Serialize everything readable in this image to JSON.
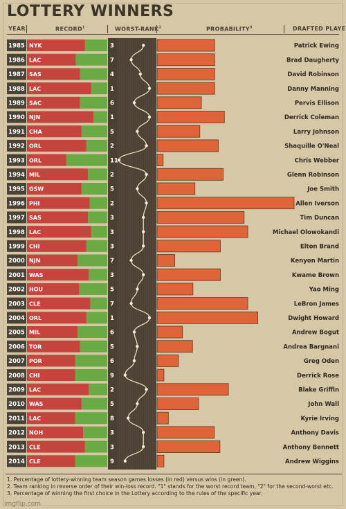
{
  "title": "LOTTERY WINNERS",
  "headers": {
    "year": "YEAR",
    "record": "RECORD",
    "record_sup": "1",
    "worst_rank": "WORST-RANK",
    "worst_rank_sup": "2",
    "probability": "PROBABILITY",
    "probability_sup": "3",
    "drafted_player": "DRAFTED PLAYER"
  },
  "colors": {
    "background": "#d6c7a6",
    "loss": "#c5443d",
    "win": "#6aaa45",
    "probability": "#e0643a",
    "rank_panel": "#4a3f33",
    "year_bg": "#4a4237"
  },
  "chart_data": {
    "type": "table",
    "title": "LOTTERY WINNERS",
    "columns": [
      "YEAR",
      "RECORD",
      "WORST-RANK",
      "PROBABILITY",
      "DRAFTED PLAYER"
    ],
    "rows": [
      {
        "year": "1985",
        "team": "NYK",
        "loss_pct": 0.72,
        "rank": "3",
        "probability": 14.3,
        "player": "Patrick Ewing"
      },
      {
        "year": "1986",
        "team": "LAC",
        "loss_pct": 0.61,
        "rank": "7",
        "probability": 14.3,
        "player": "Brad Daugherty"
      },
      {
        "year": "1987",
        "team": "SAS",
        "loss_pct": 0.66,
        "rank": "4",
        "probability": 14.3,
        "player": "David Robinson"
      },
      {
        "year": "1988",
        "team": "LAC",
        "loss_pct": 0.8,
        "rank": "1",
        "probability": 14.3,
        "player": "Danny Manning"
      },
      {
        "year": "1989",
        "team": "SAC",
        "loss_pct": 0.66,
        "rank": "6",
        "probability": 11.0,
        "player": "Pervis Ellison"
      },
      {
        "year": "1990",
        "team": "NJN",
        "loss_pct": 0.83,
        "rank": "1",
        "probability": 16.7,
        "player": "Derrick Coleman"
      },
      {
        "year": "1991",
        "team": "CHA",
        "loss_pct": 0.68,
        "rank": "5",
        "probability": 10.6,
        "player": "Larry Johnson"
      },
      {
        "year": "1992",
        "team": "ORL",
        "loss_pct": 0.74,
        "rank": "2",
        "probability": 15.2,
        "player": "Shaquille O'Neal"
      },
      {
        "year": "1993",
        "team": "ORL",
        "loss_pct": 0.49,
        "rank": "11",
        "probability": 1.5,
        "player": "Chris Webber"
      },
      {
        "year": "1994",
        "team": "MIL",
        "loss_pct": 0.76,
        "rank": "2",
        "probability": 16.4,
        "player": "Glenn Robinson"
      },
      {
        "year": "1995",
        "team": "GSW",
        "loss_pct": 0.68,
        "rank": "5",
        "probability": 9.4,
        "player": "Joe Smith"
      },
      {
        "year": "1996",
        "team": "PHI",
        "loss_pct": 0.78,
        "rank": "2",
        "probability": 34.0,
        "player": "Allen Iverson"
      },
      {
        "year": "1997",
        "team": "SAS",
        "loss_pct": 0.76,
        "rank": "3",
        "probability": 21.6,
        "player": "Tim Duncan"
      },
      {
        "year": "1998",
        "team": "LAC",
        "loss_pct": 0.8,
        "rank": "3",
        "probability": 22.5,
        "player": "Michael Olowokandi"
      },
      {
        "year": "1999",
        "team": "CHI",
        "loss_pct": 0.74,
        "rank": "3",
        "probability": 15.7,
        "player": "Elton Brand"
      },
      {
        "year": "2000",
        "team": "NJN",
        "loss_pct": 0.63,
        "rank": "7",
        "probability": 4.4,
        "player": "Kenyon Martin"
      },
      {
        "year": "2001",
        "team": "WAS",
        "loss_pct": 0.77,
        "rank": "3",
        "probability": 15.7,
        "player": "Kwame Brown"
      },
      {
        "year": "2002",
        "team": "HOU",
        "loss_pct": 0.65,
        "rank": "5",
        "probability": 8.9,
        "player": "Yao Ming"
      },
      {
        "year": "2003",
        "team": "CLE",
        "loss_pct": 0.79,
        "rank": "7",
        "probability": 22.5,
        "player": "LeBron James"
      },
      {
        "year": "2004",
        "team": "ORL",
        "loss_pct": 0.74,
        "rank": "1",
        "probability": 25.0,
        "player": "Dwight Howard"
      },
      {
        "year": "2005",
        "team": "MIL",
        "loss_pct": 0.63,
        "rank": "6",
        "probability": 6.3,
        "player": "Andrew Bogut"
      },
      {
        "year": "2006",
        "team": "TOR",
        "loss_pct": 0.66,
        "rank": "5",
        "probability": 8.8,
        "player": "Andrea Bargnani"
      },
      {
        "year": "2007",
        "team": "POR",
        "loss_pct": 0.6,
        "rank": "6",
        "probability": 5.3,
        "player": "Greg Oden"
      },
      {
        "year": "2008",
        "team": "CHI",
        "loss_pct": 0.6,
        "rank": "9",
        "probability": 1.7,
        "player": "Derrick Rose"
      },
      {
        "year": "2009",
        "team": "LAC",
        "loss_pct": 0.77,
        "rank": "2",
        "probability": 17.7,
        "player": "Blake Griffin"
      },
      {
        "year": "2010",
        "team": "WAS",
        "loss_pct": 0.68,
        "rank": "5",
        "probability": 10.3,
        "player": "John Wall"
      },
      {
        "year": "2011",
        "team": "LAC",
        "loss_pct": 0.6,
        "rank": "8",
        "probability": 2.8,
        "player": "Kyrie Irving"
      },
      {
        "year": "2012",
        "team": "NOH",
        "loss_pct": 0.7,
        "rank": "3",
        "probability": 14.2,
        "player": "Anthony Davis"
      },
      {
        "year": "2013",
        "team": "CLE",
        "loss_pct": 0.72,
        "rank": "3",
        "probability": 15.6,
        "player": "Anthony Bennett"
      },
      {
        "year": "2014",
        "team": "CLE",
        "loss_pct": 0.6,
        "rank": "9",
        "probability": 1.7,
        "player": "Andrew Wiggins"
      }
    ]
  },
  "notes": [
    "1. Percentage of lottery-winning team season games losses (in red) versus wins (in green).",
    "2. Team ranking in reverse order of their win-loss record. \"1\" stands for the worst record team, \"2\" for the second-worst etc.",
    "3. Percentage of winning the first choice in the Lottery according to the rules of the specific year."
  ],
  "watermark": "imgflip.com"
}
